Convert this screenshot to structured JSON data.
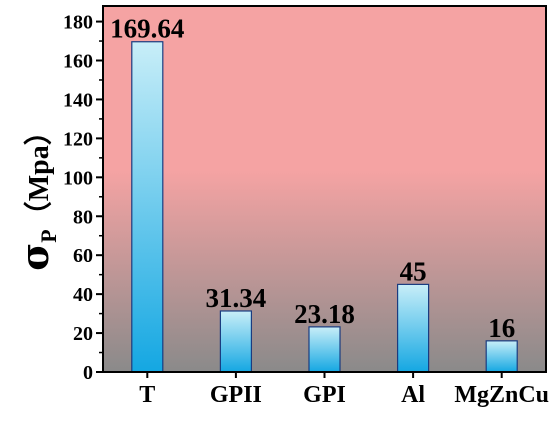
{
  "chart_data": {
    "type": "bar",
    "title": "",
    "xlabel": "",
    "ylabel": "σP（Mpa）",
    "ylabel_parts": {
      "symbol": "σ",
      "subscript": "P",
      "unit": "（Mpa）"
    },
    "categories": [
      "T",
      "GPII",
      "GPI",
      "Al",
      "MgZnCu"
    ],
    "values": [
      169.64,
      31.34,
      23.18,
      45,
      16
    ],
    "data_labels": [
      "169.64",
      "31.34",
      "23.18",
      "45",
      "16"
    ],
    "ylim": [
      0,
      188
    ],
    "yticks": [
      0,
      20,
      40,
      60,
      80,
      100,
      120,
      140,
      160,
      180
    ],
    "ytick_labels": [
      "0",
      "20",
      "40",
      "60",
      "80",
      "100",
      "120",
      "140",
      "160",
      "180"
    ],
    "grid": false,
    "legend": "none",
    "colors": {
      "background_top": "#f5a3a3",
      "background_bottom": "#8a8a8a",
      "bar_light": "#c8eef8",
      "bar_dark": "#14a7e2",
      "bar_stroke": "#1a3c80"
    }
  }
}
